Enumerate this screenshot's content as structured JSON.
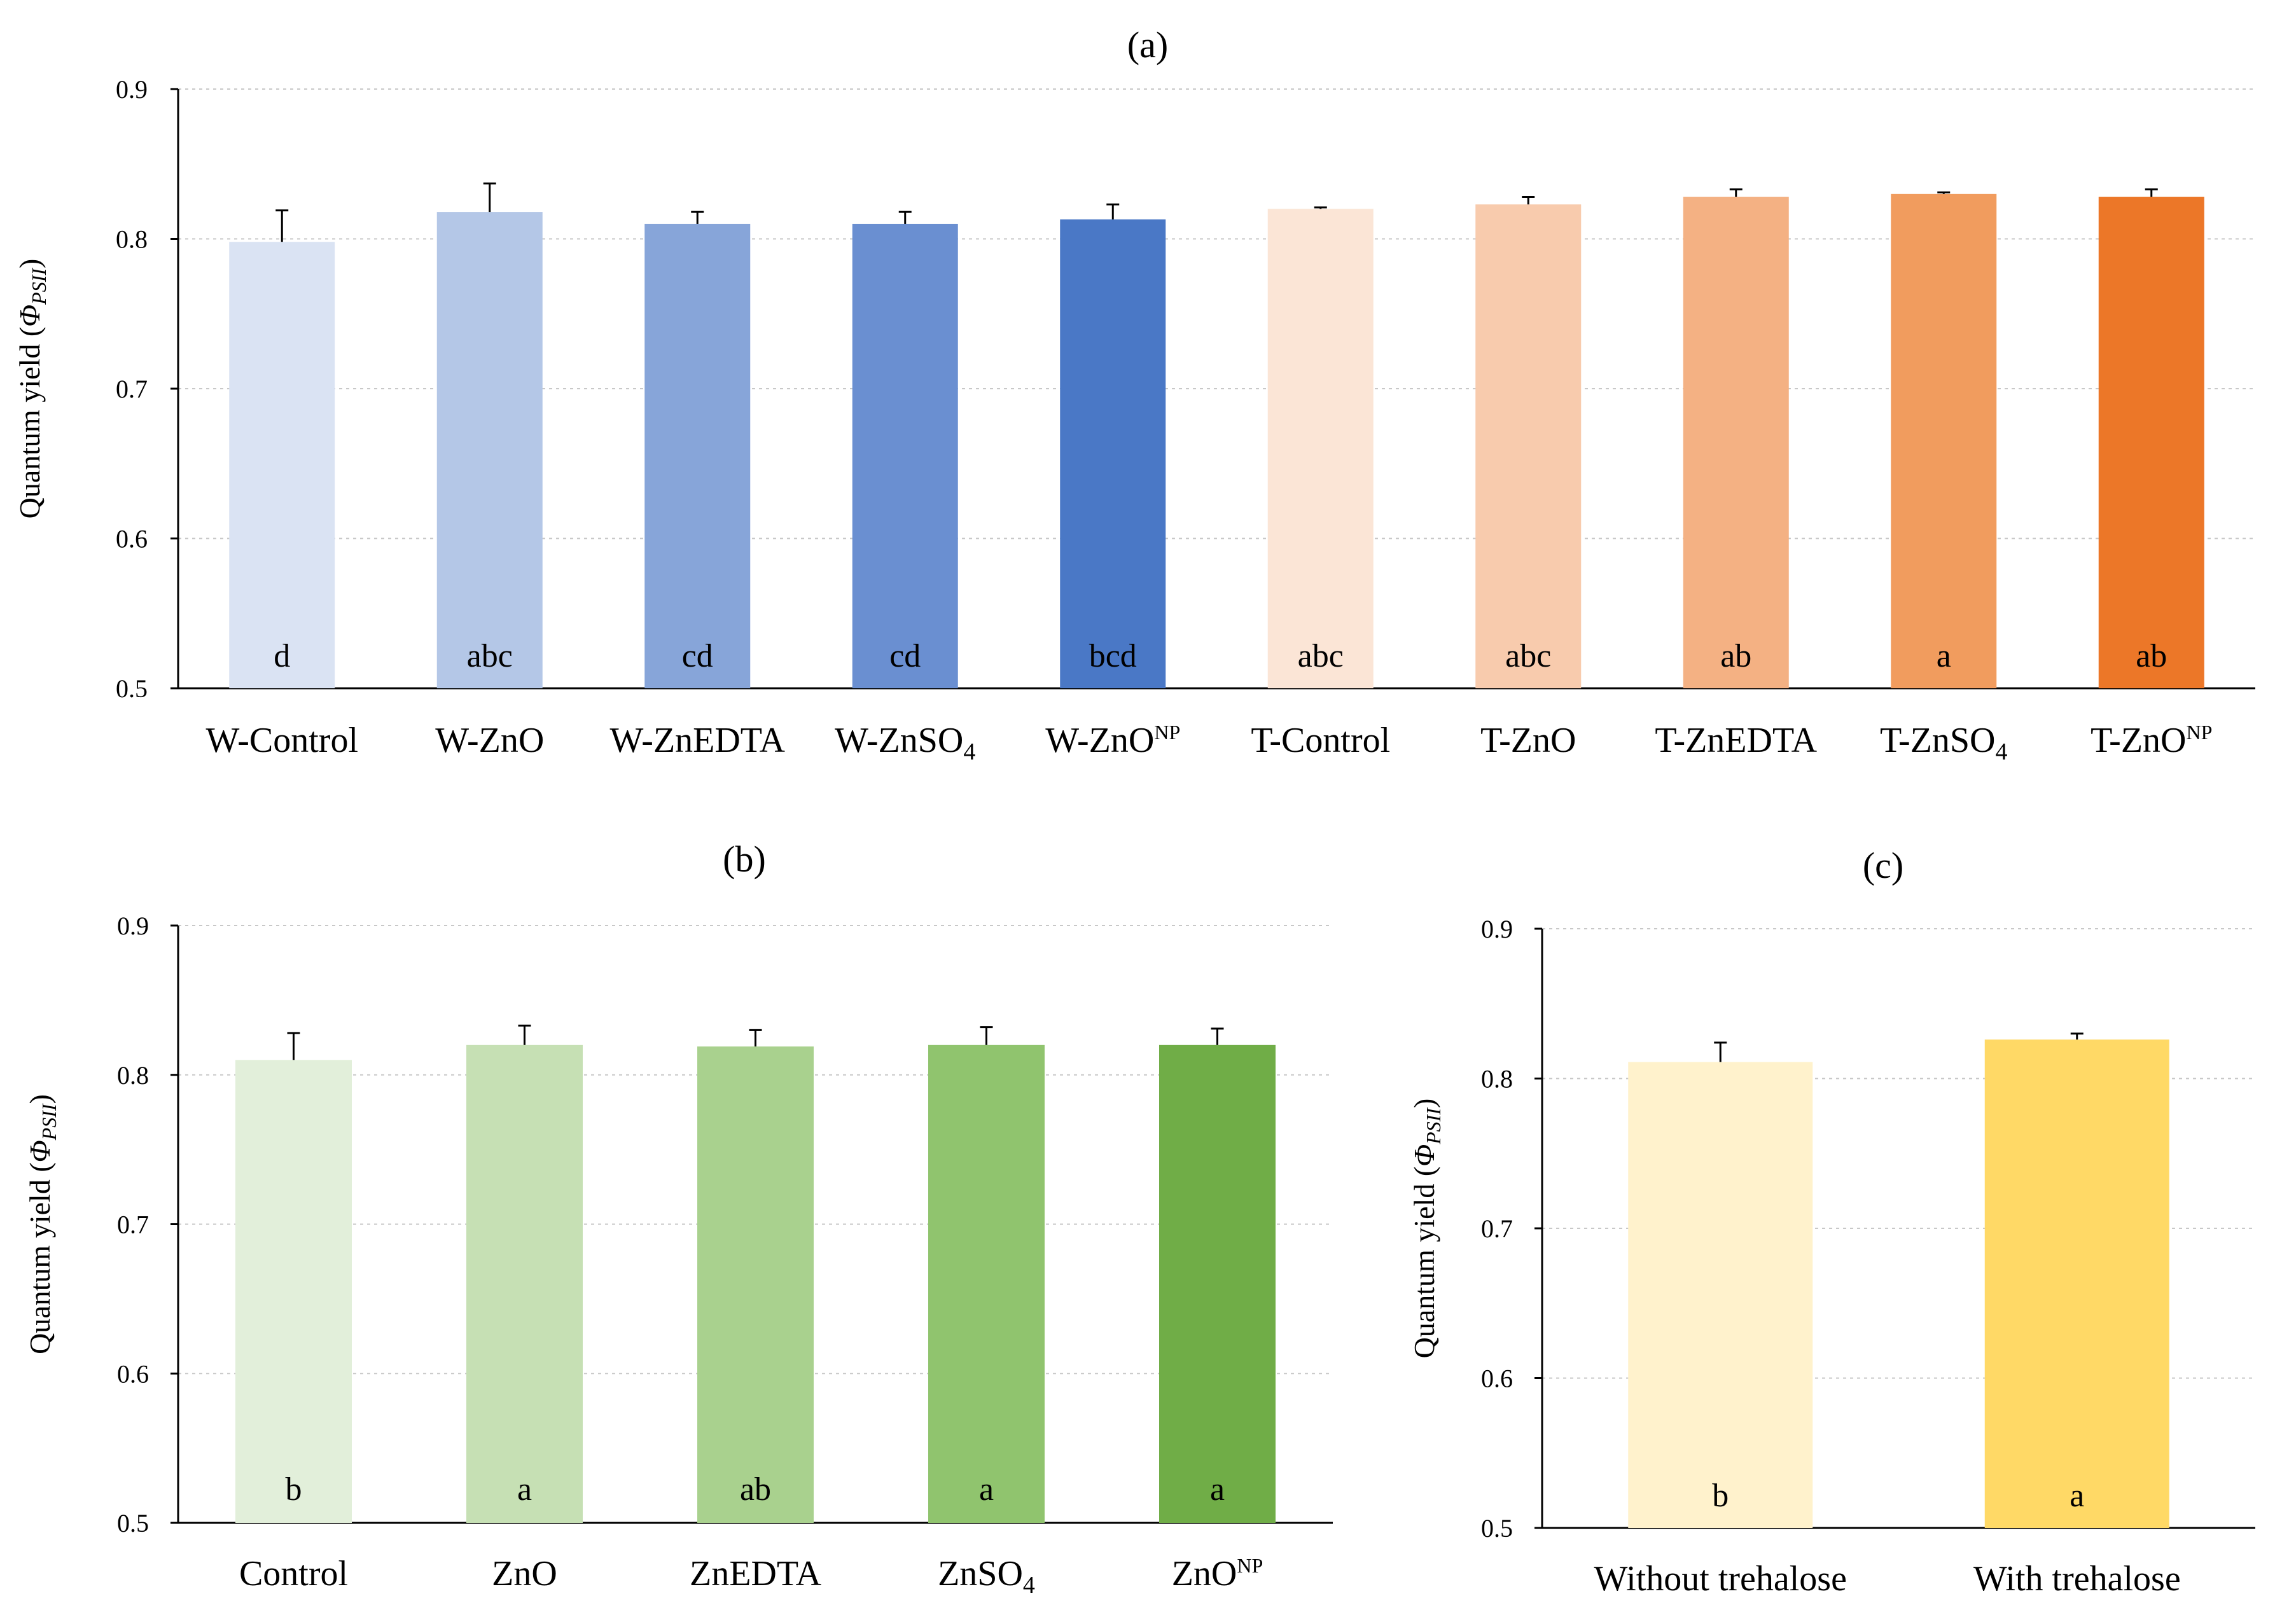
{
  "chart_data": [
    {
      "type": "bar",
      "title": "(a)",
      "ylabel": "Quantum yield (ΦPSII)",
      "ylabel_parts": {
        "main": "Quantum yield (",
        "symbol": "Φ",
        "sub": "PSII",
        "close": ")"
      },
      "ylim": [
        0.5,
        0.9
      ],
      "yticks": [
        "0.5",
        "0.6",
        "0.7",
        "0.8",
        "0.9"
      ],
      "grid": true,
      "categories": [
        {
          "base": "W-Control"
        },
        {
          "base": "W-ZnO"
        },
        {
          "base": "W-ZnEDTA"
        },
        {
          "base": "W-ZnSO",
          "sub": "4"
        },
        {
          "base": "W-ZnO",
          "sup": "NP"
        },
        {
          "base": "T-Control"
        },
        {
          "base": "T-ZnO"
        },
        {
          "base": "T-ZnEDTA"
        },
        {
          "base": "T-ZnSO",
          "sub": "4"
        },
        {
          "base": "T-ZnO",
          "sup": "NP"
        }
      ],
      "values": [
        0.798,
        0.818,
        0.81,
        0.81,
        0.813,
        0.82,
        0.823,
        0.828,
        0.83,
        0.828
      ],
      "errors": [
        0.021,
        0.019,
        0.008,
        0.008,
        0.01,
        0.001,
        0.005,
        0.005,
        0.001,
        0.005
      ],
      "letters": [
        "d",
        "abc",
        "cd",
        "cd",
        "bcd",
        "abc",
        "abc",
        "ab",
        "a",
        "ab"
      ],
      "colors": [
        "#dae3f3",
        "#b4c7e7",
        "#87a5d9",
        "#6a8fd1",
        "#4a78c6",
        "#fbe5d6",
        "#f8cbad",
        "#f4b183",
        "#f19c5e",
        "#ec7728"
      ]
    },
    {
      "type": "bar",
      "title": "(b)",
      "ylabel": "Quantum yield (ΦPSII)",
      "ylabel_parts": {
        "main": "Quantum yield (",
        "symbol": "Φ",
        "sub": "PSII",
        "close": ")"
      },
      "ylim": [
        0.5,
        0.9
      ],
      "yticks": [
        "0.5",
        "0.6",
        "0.7",
        "0.8",
        "0.9"
      ],
      "grid": true,
      "categories": [
        {
          "base": "Control"
        },
        {
          "base": "ZnO"
        },
        {
          "base": "ZnEDTA"
        },
        {
          "base": "ZnSO",
          "sub": "4"
        },
        {
          "base": "ZnO",
          "sup": "NP"
        }
      ],
      "values": [
        0.81,
        0.82,
        0.819,
        0.82,
        0.82
      ],
      "errors": [
        0.018,
        0.013,
        0.011,
        0.012,
        0.011
      ],
      "letters": [
        "b",
        "a",
        "ab",
        "a",
        "a"
      ],
      "colors": [
        "#e2efda",
        "#c6e0b4",
        "#a9d18e",
        "#90c46e",
        "#70ad47"
      ]
    },
    {
      "type": "bar",
      "title": "(c)",
      "ylabel": "Quantum yield (ΦPSII)",
      "ylabel_parts": {
        "main": "Quantum yield (",
        "symbol": "Φ",
        "sub": "PSII",
        "close": ")"
      },
      "ylim": [
        0.5,
        0.9
      ],
      "yticks": [
        "0.5",
        "0.6",
        "0.7",
        "0.8",
        "0.9"
      ],
      "grid": true,
      "categories": [
        {
          "base": "Without trehalose"
        },
        {
          "base": "With trehalose"
        }
      ],
      "values": [
        0.811,
        0.826
      ],
      "errors": [
        0.013,
        0.004
      ],
      "letters": [
        "b",
        "a"
      ],
      "colors": [
        "#fff2cc",
        "#ffd966"
      ]
    }
  ]
}
